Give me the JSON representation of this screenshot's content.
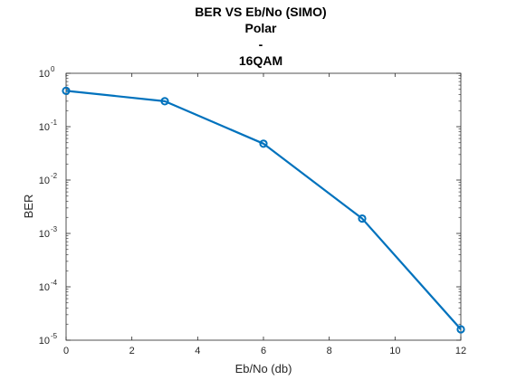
{
  "chart_data": {
    "type": "line",
    "title_lines": [
      "BER VS Eb/No (SIMO)",
      "Polar",
      "-",
      "16QAM"
    ],
    "xlabel": "Eb/No (db)",
    "ylabel": "BER",
    "x": [
      0,
      3,
      6,
      9,
      12
    ],
    "series": [
      {
        "name": "BER",
        "values": [
          0.47,
          0.3,
          0.048,
          0.0019,
          1.6e-05
        ],
        "color": "#0072BD",
        "marker": "circle"
      }
    ],
    "xlim": [
      0,
      12
    ],
    "ylim": [
      1e-05,
      1
    ],
    "yscale": "log",
    "x_ticks": [
      "0",
      "2",
      "4",
      "6",
      "8",
      "10",
      "12"
    ],
    "y_ticks": [
      {
        "base": "10",
        "exp": "0"
      },
      {
        "base": "10",
        "exp": "-1"
      },
      {
        "base": "10",
        "exp": "-2"
      },
      {
        "base": "10",
        "exp": "-3"
      },
      {
        "base": "10",
        "exp": "-4"
      },
      {
        "base": "10",
        "exp": "-5"
      }
    ],
    "grid": false,
    "box": true
  }
}
